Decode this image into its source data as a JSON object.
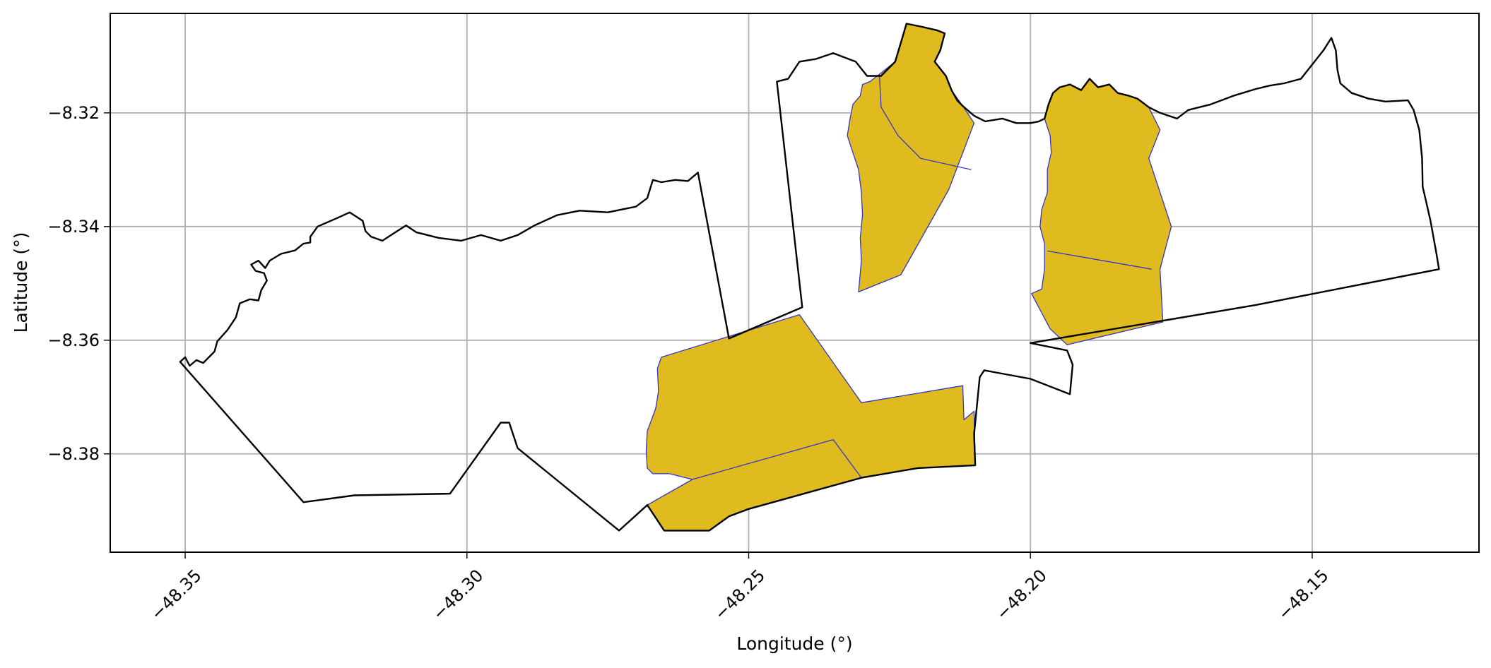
{
  "chart_data": {
    "type": "map",
    "xlabel": "Longitude (°)",
    "ylabel": "Latitude (°)",
    "xlim": [
      -48.3633,
      -48.1204
    ],
    "ylim": [
      -8.3973,
      -8.3025
    ],
    "x_ticks": [
      -48.35,
      -48.3,
      -48.25,
      -48.2,
      -48.15
    ],
    "x_tick_labels": [
      "−48.35",
      "−48.30",
      "−48.25",
      "−48.20",
      "−48.15"
    ],
    "y_ticks": [
      -8.32,
      -8.34,
      -8.36,
      -8.38
    ],
    "y_tick_labels": [
      "−8.32",
      "−8.34",
      "−8.36",
      "−8.38"
    ],
    "grid": true,
    "colors": {
      "highlight_fill": "#dfbb1f",
      "highlight_edge": "#3434c8",
      "outline": "#000000",
      "grid": "#b0b0b0"
    },
    "outline_polygons": [
      {
        "name": "west-area",
        "points": [
          [
            -48.3509,
            -8.3638
          ],
          [
            -48.35,
            -8.363
          ],
          [
            -48.3492,
            -8.3645
          ],
          [
            -48.348,
            -8.3635
          ],
          [
            -48.3468,
            -8.364
          ],
          [
            -48.3448,
            -8.362
          ],
          [
            -48.3443,
            -8.3602
          ],
          [
            -48.3425,
            -8.3582
          ],
          [
            -48.341,
            -8.356
          ],
          [
            -48.3403,
            -8.3535
          ],
          [
            -48.3385,
            -8.3528
          ],
          [
            -48.337,
            -8.353
          ],
          [
            -48.3365,
            -8.3512
          ],
          [
            -48.3355,
            -8.3495
          ],
          [
            -48.336,
            -8.3482
          ],
          [
            -48.3375,
            -8.3478
          ],
          [
            -48.3383,
            -8.3467
          ],
          [
            -48.337,
            -8.346
          ],
          [
            -48.3358,
            -8.3473
          ],
          [
            -48.335,
            -8.346
          ],
          [
            -48.333,
            -8.3448
          ],
          [
            -48.3305,
            -8.3442
          ],
          [
            -48.329,
            -8.343
          ],
          [
            -48.3278,
            -8.3428
          ],
          [
            -48.3278,
            -8.3418
          ],
          [
            -48.3265,
            -8.34
          ],
          [
            -48.323,
            -8.3385
          ],
          [
            -48.3208,
            -8.3375
          ],
          [
            -48.3185,
            -8.339
          ],
          [
            -48.318,
            -8.3408
          ],
          [
            -48.317,
            -8.3418
          ],
          [
            -48.315,
            -8.3425
          ],
          [
            -48.313,
            -8.3412
          ],
          [
            -48.3108,
            -8.3398
          ],
          [
            -48.309,
            -8.341
          ],
          [
            -48.305,
            -8.342
          ],
          [
            -48.301,
            -8.3425
          ],
          [
            -48.2975,
            -8.3415
          ],
          [
            -48.294,
            -8.3425
          ],
          [
            -48.291,
            -8.3415
          ],
          [
            -48.288,
            -8.3398
          ],
          [
            -48.284,
            -8.338
          ],
          [
            -48.28,
            -8.3372
          ],
          [
            -48.275,
            -8.3375
          ],
          [
            -48.27,
            -8.3365
          ],
          [
            -48.268,
            -8.335
          ],
          [
            -48.267,
            -8.3318
          ],
          [
            -48.2655,
            -8.3322
          ],
          [
            -48.263,
            -8.3318
          ],
          [
            -48.2608,
            -8.332
          ],
          [
            -48.259,
            -8.3305
          ],
          [
            -48.2535,
            -8.3597
          ],
          [
            -48.2405,
            -8.3542
          ],
          [
            -48.245,
            -8.3145
          ],
          [
            -48.243,
            -8.314
          ],
          [
            -48.241,
            -8.311
          ],
          [
            -48.238,
            -8.3105
          ],
          [
            -48.235,
            -8.3095
          ],
          [
            -48.231,
            -8.311
          ],
          [
            -48.229,
            -8.3135
          ],
          [
            -48.2265,
            -8.3135
          ],
          [
            -48.224,
            -8.311
          ],
          [
            -48.2225,
            -8.306
          ],
          [
            -48.222,
            -8.3043
          ],
          [
            -48.2195,
            -8.3048
          ],
          [
            -48.2165,
            -8.3055
          ],
          [
            -48.2152,
            -8.306
          ],
          [
            -48.216,
            -8.309
          ],
          [
            -48.217,
            -8.311
          ],
          [
            -48.215,
            -8.3135
          ],
          [
            -48.214,
            -8.316
          ],
          [
            -48.213,
            -8.3178
          ],
          [
            -48.212,
            -8.3188
          ],
          [
            -48.21,
            -8.3205
          ],
          [
            -48.208,
            -8.3215
          ],
          [
            -48.205,
            -8.321
          ],
          [
            -48.2025,
            -8.3218
          ],
          [
            -48.2,
            -8.3218
          ],
          [
            -48.1985,
            -8.3215
          ],
          [
            -48.1975,
            -8.321
          ],
          [
            -48.1968,
            -8.3185
          ],
          [
            -48.196,
            -8.3165
          ],
          [
            -48.1948,
            -8.3155
          ],
          [
            -48.193,
            -8.315
          ],
          [
            -48.191,
            -8.316
          ],
          [
            -48.1895,
            -8.314
          ],
          [
            -48.188,
            -8.3155
          ],
          [
            -48.186,
            -8.315
          ],
          [
            -48.1845,
            -8.3165
          ],
          [
            -48.1825,
            -8.317
          ],
          [
            -48.181,
            -8.3175
          ],
          [
            -48.179,
            -8.319
          ],
          [
            -48.177,
            -8.32
          ],
          [
            -48.174,
            -8.321
          ],
          [
            -48.172,
            -8.3195
          ],
          [
            -48.168,
            -8.3185
          ],
          [
            -48.164,
            -8.317
          ],
          [
            -48.16,
            -8.3158
          ],
          [
            -48.1575,
            -8.3152
          ],
          [
            -48.155,
            -8.3148
          ],
          [
            -48.152,
            -8.314
          ],
          [
            -48.148,
            -8.309
          ],
          [
            -48.1466,
            -8.3068
          ],
          [
            -48.1458,
            -8.309
          ],
          [
            -48.1455,
            -8.3125
          ],
          [
            -48.145,
            -8.3148
          ],
          [
            -48.143,
            -8.3165
          ],
          [
            -48.14,
            -8.3175
          ],
          [
            -48.137,
            -8.318
          ],
          [
            -48.133,
            -8.3178
          ],
          [
            -48.132,
            -8.3195
          ],
          [
            -48.131,
            -8.323
          ],
          [
            -48.1305,
            -8.328
          ],
          [
            -48.1304,
            -8.333
          ],
          [
            -48.1298,
            -8.3355
          ],
          [
            -48.129,
            -8.339
          ],
          [
            -48.128,
            -8.3445
          ],
          [
            -48.1275,
            -8.3475
          ],
          [
            -48.16,
            -8.3538
          ],
          [
            -48.2,
            -8.3605
          ],
          [
            -48.1935,
            -8.3618
          ],
          [
            -48.1925,
            -8.3643
          ],
          [
            -48.193,
            -8.3695
          ],
          [
            -48.2,
            -8.3668
          ],
          [
            -48.2082,
            -8.3653
          ],
          [
            -48.209,
            -8.3665
          ],
          [
            -48.21,
            -8.3765
          ],
          [
            -48.2098,
            -8.382
          ],
          [
            -48.22,
            -8.3825
          ],
          [
            -48.23,
            -8.3842
          ],
          [
            -48.25,
            -8.3897
          ],
          [
            -48.2535,
            -8.391
          ],
          [
            -48.257,
            -8.3935
          ],
          [
            -48.265,
            -8.3935
          ],
          [
            -48.268,
            -8.389
          ],
          [
            -48.273,
            -8.3935
          ],
          [
            -48.291,
            -8.379
          ],
          [
            -48.2925,
            -8.3745
          ],
          [
            -48.294,
            -8.3745
          ],
          [
            -48.303,
            -8.387
          ],
          [
            -48.32,
            -8.3873
          ],
          [
            -48.329,
            -8.3885
          ],
          [
            -48.3509,
            -8.3638
          ]
        ]
      }
    ],
    "highlighted_regions": [
      {
        "name": "north-west-strip",
        "points": [
          [
            -48.2305,
            -8.3515
          ],
          [
            -48.223,
            -8.3485
          ],
          [
            -48.2145,
            -8.3335
          ],
          [
            -48.21,
            -8.3218
          ],
          [
            -48.212,
            -8.3188
          ],
          [
            -48.214,
            -8.316
          ],
          [
            -48.215,
            -8.3135
          ],
          [
            -48.217,
            -8.311
          ],
          [
            -48.216,
            -8.309
          ],
          [
            -48.2152,
            -8.306
          ],
          [
            -48.2165,
            -8.3055
          ],
          [
            -48.2195,
            -8.3048
          ],
          [
            -48.222,
            -8.3043
          ],
          [
            -48.2225,
            -8.306
          ],
          [
            -48.224,
            -8.311
          ],
          [
            -48.2268,
            -8.3132
          ],
          [
            -48.2285,
            -8.3145
          ],
          [
            -48.2298,
            -8.315
          ],
          [
            -48.2302,
            -8.317
          ],
          [
            -48.2315,
            -8.3185
          ],
          [
            -48.232,
            -8.321
          ],
          [
            -48.2325,
            -8.324
          ],
          [
            -48.2315,
            -8.327
          ],
          [
            -48.2305,
            -8.33
          ],
          [
            -48.23,
            -8.334
          ],
          [
            -48.2298,
            -8.338
          ],
          [
            -48.2302,
            -8.342
          ],
          [
            -48.23,
            -8.346
          ],
          [
            -48.2305,
            -8.3515
          ]
        ]
      },
      {
        "name": "north-east-strip",
        "points": [
          [
            -48.1998,
            -8.3518
          ],
          [
            -48.198,
            -8.351
          ],
          [
            -48.1975,
            -8.3475
          ],
          [
            -48.1975,
            -8.343
          ],
          [
            -48.1983,
            -8.34
          ],
          [
            -48.198,
            -8.337
          ],
          [
            -48.197,
            -8.334
          ],
          [
            -48.197,
            -8.33
          ],
          [
            -48.1963,
            -8.327
          ],
          [
            -48.1965,
            -8.324
          ],
          [
            -48.1975,
            -8.321
          ],
          [
            -48.1968,
            -8.3185
          ],
          [
            -48.196,
            -8.3165
          ],
          [
            -48.1948,
            -8.3155
          ],
          [
            -48.193,
            -8.315
          ],
          [
            -48.191,
            -8.316
          ],
          [
            -48.1895,
            -8.314
          ],
          [
            -48.188,
            -8.3155
          ],
          [
            -48.186,
            -8.315
          ],
          [
            -48.1845,
            -8.3165
          ],
          [
            -48.1825,
            -8.317
          ],
          [
            -48.181,
            -8.3175
          ],
          [
            -48.179,
            -8.319
          ],
          [
            -48.177,
            -8.323
          ],
          [
            -48.179,
            -8.328
          ],
          [
            -48.175,
            -8.34
          ],
          [
            -48.177,
            -8.3475
          ],
          [
            -48.1765,
            -8.3568
          ],
          [
            -48.1935,
            -8.3608
          ],
          [
            -48.1965,
            -8.358
          ],
          [
            -48.1998,
            -8.3518
          ]
        ]
      },
      {
        "name": "south-block",
        "points": [
          [
            -48.2655,
            -8.363
          ],
          [
            -48.241,
            -8.3555
          ],
          [
            -48.23,
            -8.371
          ],
          [
            -48.212,
            -8.368
          ],
          [
            -48.2118,
            -8.374
          ],
          [
            -48.21,
            -8.3725
          ],
          [
            -48.2098,
            -8.382
          ],
          [
            -48.22,
            -8.3825
          ],
          [
            -48.23,
            -8.3842
          ],
          [
            -48.25,
            -8.3897
          ],
          [
            -48.2535,
            -8.391
          ],
          [
            -48.257,
            -8.3935
          ],
          [
            -48.265,
            -8.3935
          ],
          [
            -48.268,
            -8.389
          ],
          [
            -48.26,
            -8.3845
          ],
          [
            -48.264,
            -8.3835
          ],
          [
            -48.267,
            -8.3835
          ],
          [
            -48.268,
            -8.3825
          ],
          [
            -48.2682,
            -8.3795
          ],
          [
            -48.268,
            -8.376
          ],
          [
            -48.2665,
            -8.372
          ],
          [
            -48.266,
            -8.369
          ],
          [
            -48.2662,
            -8.365
          ],
          [
            -48.2655,
            -8.363
          ]
        ]
      }
    ],
    "highlight_inner_boundaries": [
      {
        "name": "north-west-divider",
        "points": [
          [
            -48.2268,
            -8.3132
          ],
          [
            -48.2265,
            -8.319
          ],
          [
            -48.2235,
            -8.324
          ],
          [
            -48.2195,
            -8.328
          ],
          [
            -48.2105,
            -8.33
          ]
        ]
      },
      {
        "name": "north-east-divider",
        "points": [
          [
            -48.197,
            -8.3443
          ],
          [
            -48.1785,
            -8.3475
          ]
        ]
      },
      {
        "name": "south-divider",
        "points": [
          [
            -48.26,
            -8.3845
          ],
          [
            -48.235,
            -8.3775
          ],
          [
            -48.23,
            -8.3842
          ]
        ]
      }
    ]
  }
}
